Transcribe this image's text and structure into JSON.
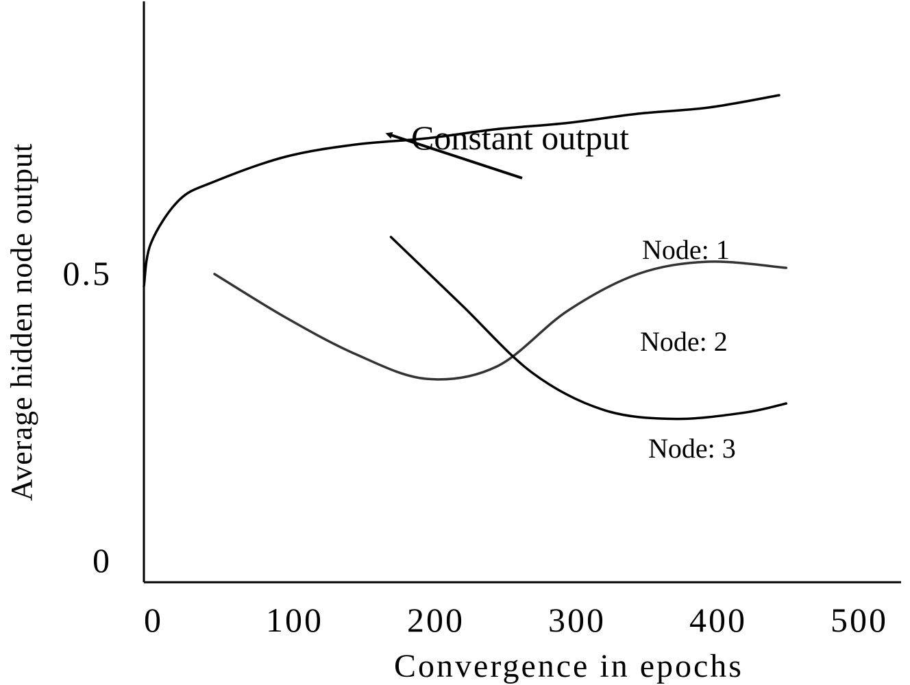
{
  "chart_data": {
    "type": "line",
    "xlabel": "Convergence in epochs",
    "ylabel": "Average hidden node output",
    "x_ticks": [
      "0",
      "100",
      "200",
      "300",
      "400",
      "500"
    ],
    "y_ticks": [
      "0",
      "0.5"
    ],
    "xlim": [
      0,
      530
    ],
    "ylim": [
      0,
      1.1
    ],
    "grid": false,
    "legend": "none",
    "annotation": {
      "text": "Constant output",
      "arrow_target": [
        168,
        0.71
      ]
    },
    "series": [
      {
        "name": "Node: 1",
        "color": "#000000",
        "x": [
          0,
          5,
          25,
          50,
          100,
          150,
          200,
          250,
          300,
          350,
          400,
          450
        ],
        "y": [
          0.48,
          0.55,
          0.62,
          0.65,
          0.69,
          0.71,
          0.72,
          0.735,
          0.745,
          0.76,
          0.77,
          0.79
        ]
      },
      {
        "name": "Node: 2",
        "color": "#333333",
        "x": [
          50,
          100,
          150,
          200,
          250,
          300,
          350,
          400,
          455
        ],
        "y": [
          0.5,
          0.43,
          0.37,
          0.33,
          0.35,
          0.44,
          0.5,
          0.52,
          0.51
        ]
      },
      {
        "name": "Node: 3",
        "color": "#000000",
        "x": [
          175,
          225,
          275,
          325,
          375,
          425,
          455
        ],
        "y": [
          0.56,
          0.45,
          0.34,
          0.28,
          0.265,
          0.275,
          0.29
        ]
      }
    ]
  }
}
